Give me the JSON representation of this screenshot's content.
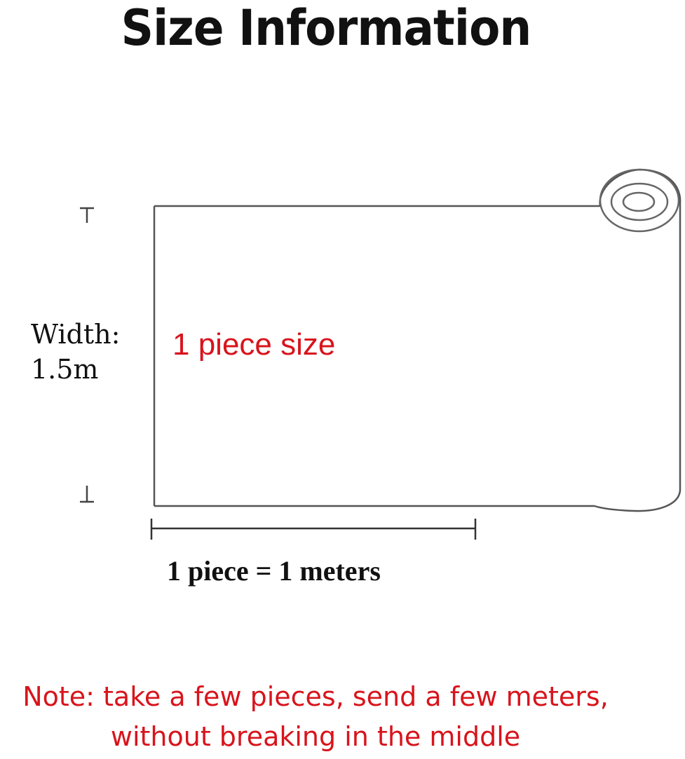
{
  "title": "Size Information",
  "width_label": {
    "line1": "Width:",
    "line2": "1.5m"
  },
  "piece_label": "1 piece size",
  "length_label": "1 piece = 1 meters",
  "note": {
    "line1": "Note: take a few pieces, send a few meters,",
    "line2": "without breaking in the middle"
  },
  "colors": {
    "text": "#111111",
    "accent": "#d8141c",
    "line": "#555555"
  }
}
